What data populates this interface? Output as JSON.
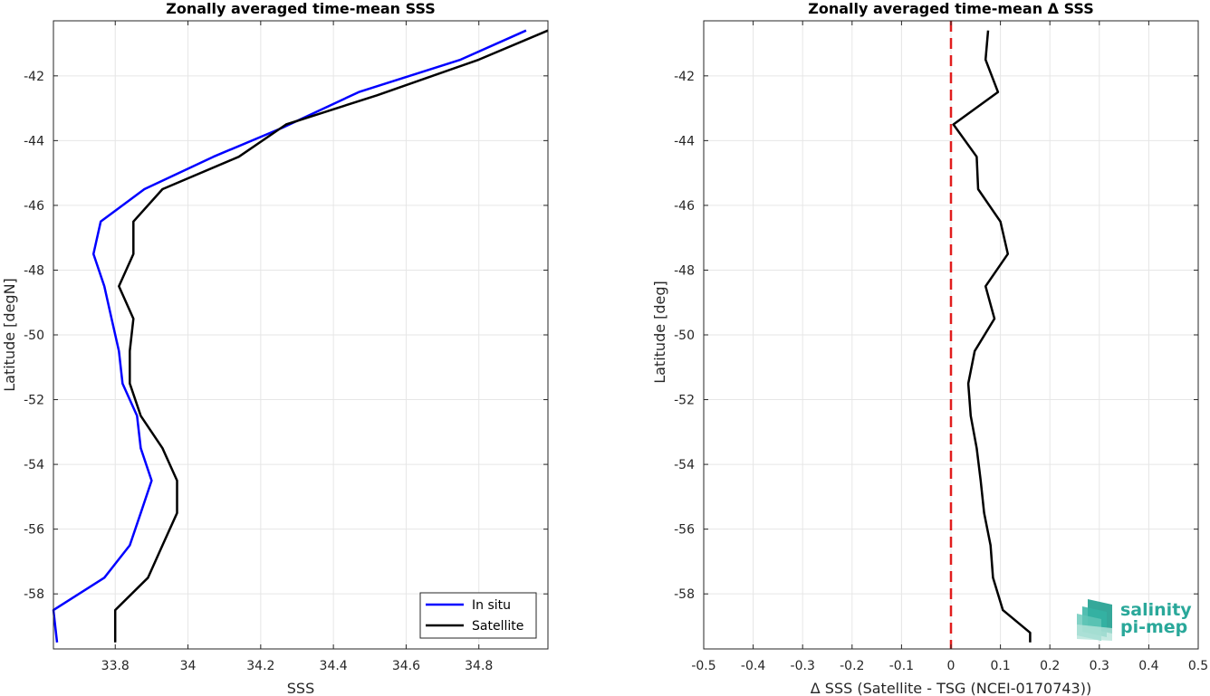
{
  "logo": {
    "line1": "salinity",
    "line2": "pi-mep",
    "color": "#2aa89a"
  },
  "chart_data": [
    {
      "type": "line",
      "title": "Zonally averaged time-mean SSS",
      "xlabel": "SSS",
      "ylabel": "Latitude [degN]",
      "xlim": [
        33.63,
        34.99
      ],
      "ylim": [
        -59.7,
        -40.3
      ],
      "xticks": [
        33.8,
        34,
        34.2,
        34.4,
        34.6,
        34.8
      ],
      "xtick_labels": [
        "33.8",
        "34",
        "34.2",
        "34.4",
        "34.6",
        "34.8"
      ],
      "yticks": [
        -42,
        -44,
        -46,
        -48,
        -50,
        -52,
        -54,
        -56,
        -58
      ],
      "ytick_labels": [
        "-42",
        "-44",
        "-46",
        "-48",
        "-50",
        "-52",
        "-54",
        "-56",
        "-58"
      ],
      "grid": true,
      "legend_position": "bottom-right",
      "series": [
        {
          "name": "In situ",
          "color": "#0000ff",
          "points": [
            [
              34.93,
              -40.6
            ],
            [
              34.75,
              -41.5
            ],
            [
              34.47,
              -42.5
            ],
            [
              34.26,
              -43.6
            ],
            [
              34.07,
              -44.5
            ],
            [
              33.88,
              -45.5
            ],
            [
              33.76,
              -46.5
            ],
            [
              33.74,
              -47.5
            ],
            [
              33.77,
              -48.5
            ],
            [
              33.79,
              -49.5
            ],
            [
              33.81,
              -50.5
            ],
            [
              33.82,
              -51.5
            ],
            [
              33.86,
              -52.5
            ],
            [
              33.87,
              -53.5
            ],
            [
              33.9,
              -54.5
            ],
            [
              33.87,
              -55.5
            ],
            [
              33.84,
              -56.5
            ],
            [
              33.77,
              -57.5
            ],
            [
              33.63,
              -58.5
            ],
            [
              33.64,
              -59.5
            ]
          ]
        },
        {
          "name": "Satellite",
          "color": "#000000",
          "points": [
            [
              34.99,
              -40.6
            ],
            [
              34.8,
              -41.5
            ],
            [
              34.52,
              -42.6
            ],
            [
              34.27,
              -43.5
            ],
            [
              34.14,
              -44.5
            ],
            [
              33.93,
              -45.5
            ],
            [
              33.85,
              -46.5
            ],
            [
              33.85,
              -47.5
            ],
            [
              33.81,
              -48.5
            ],
            [
              33.85,
              -49.5
            ],
            [
              33.84,
              -50.5
            ],
            [
              33.84,
              -51.5
            ],
            [
              33.87,
              -52.5
            ],
            [
              33.93,
              -53.5
            ],
            [
              33.97,
              -54.5
            ],
            [
              33.97,
              -55.5
            ],
            [
              33.93,
              -56.5
            ],
            [
              33.89,
              -57.5
            ],
            [
              33.8,
              -58.5
            ],
            [
              33.8,
              -59.5
            ]
          ]
        }
      ]
    },
    {
      "type": "line",
      "title": "Zonally averaged time-mean Δ SSS",
      "xlabel": "Δ SSS (Satellite - TSG (NCEI-0170743))",
      "ylabel": "Latitude [deg]",
      "xlim": [
        -0.5,
        0.5
      ],
      "ylim": [
        -59.7,
        -40.3
      ],
      "xticks": [
        -0.5,
        -0.4,
        -0.3,
        -0.2,
        -0.1,
        0,
        0.1,
        0.2,
        0.3,
        0.4,
        0.5
      ],
      "xtick_labels": [
        "-0.5",
        "-0.4",
        "-0.3",
        "-0.2",
        "-0.1",
        "0",
        "0.1",
        "0.2",
        "0.3",
        "0.4",
        "0.5"
      ],
      "yticks": [
        -42,
        -44,
        -46,
        -48,
        -50,
        -52,
        -54,
        -56,
        -58
      ],
      "ytick_labels": [
        "-42",
        "-44",
        "-46",
        "-48",
        "-50",
        "-52",
        "-54",
        "-56",
        "-58"
      ],
      "grid": true,
      "reference_line": {
        "x": 0,
        "color": "#e11d1d",
        "style": "dashed"
      },
      "series": [
        {
          "color": "#000000",
          "points": [
            [
              0.075,
              -40.6
            ],
            [
              0.07,
              -41.5
            ],
            [
              0.095,
              -42.5
            ],
            [
              0.005,
              -43.5
            ],
            [
              0.052,
              -44.5
            ],
            [
              0.055,
              -45.5
            ],
            [
              0.1,
              -46.5
            ],
            [
              0.115,
              -47.5
            ],
            [
              0.07,
              -48.5
            ],
            [
              0.088,
              -49.5
            ],
            [
              0.048,
              -50.5
            ],
            [
              0.035,
              -51.5
            ],
            [
              0.04,
              -52.5
            ],
            [
              0.052,
              -53.5
            ],
            [
              0.06,
              -54.5
            ],
            [
              0.067,
              -55.5
            ],
            [
              0.08,
              -56.5
            ],
            [
              0.085,
              -57.5
            ],
            [
              0.105,
              -58.5
            ],
            [
              0.16,
              -59.2
            ],
            [
              0.16,
              -59.5
            ]
          ]
        }
      ]
    }
  ]
}
